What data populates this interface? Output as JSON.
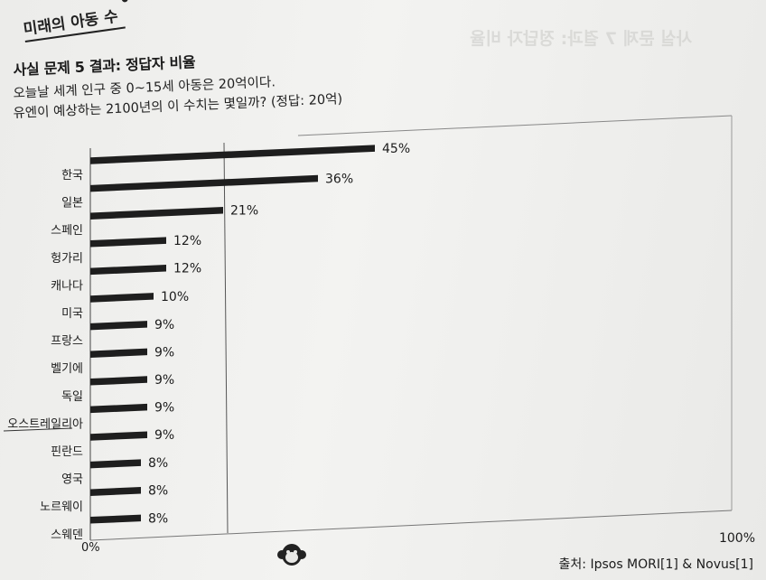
{
  "section_tag": "미래의 아동 수",
  "question": {
    "title": "사실 문제 5 결과: 정답자 비율",
    "line1": "오늘날 세계 인구 중 0~15세 아동은 20억이다.",
    "line2": "유엔이 예상하는 2100년의 이 수치는 몇일까? (정답: 20억)"
  },
  "source": "출처: Ipsos MORI[1] & Novus[1]",
  "ghost_text": "사실 문제 7 결과: 정답자 비율",
  "chart_data": {
    "type": "bar",
    "orientation": "horizontal",
    "categories": [
      "한국",
      "일본",
      "스페인",
      "헝가리",
      "캐나다",
      "미국",
      "프랑스",
      "벨기에",
      "독일",
      "오스트레일리아",
      "핀란드",
      "영국",
      "노르웨이",
      "스웨덴"
    ],
    "values": [
      45,
      36,
      21,
      12,
      12,
      10,
      9,
      9,
      9,
      9,
      9,
      8,
      8,
      8
    ],
    "value_labels": [
      "45%",
      "36%",
      "21%",
      "12%",
      "12%",
      "10%",
      "9%",
      "9%",
      "9%",
      "9%",
      "9%",
      "8%",
      "8%",
      "8%"
    ],
    "xlim": [
      0,
      100
    ],
    "x_tick_labels": [
      "0%",
      "100%"
    ],
    "reference_line": 20,
    "bar_color": "#1e1e1e"
  }
}
